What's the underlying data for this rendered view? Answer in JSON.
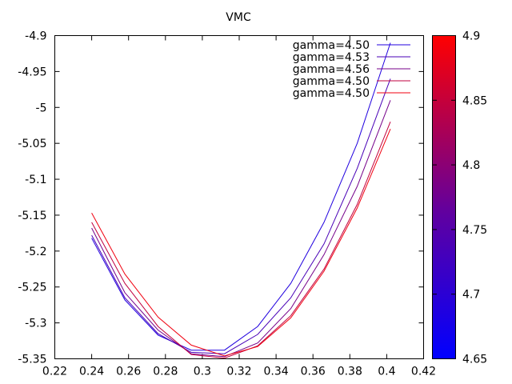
{
  "chart_data": {
    "type": "line",
    "title": "VMC",
    "xlabel": "",
    "ylabel": "",
    "xlim": [
      0.22,
      0.42
    ],
    "ylim": [
      -5.35,
      -4.9
    ],
    "xticks": [
      "0.22",
      "0.24",
      "0.26",
      "0.28",
      "0.3",
      "0.32",
      "0.34",
      "0.36",
      "0.38",
      "0.4",
      "0.42"
    ],
    "yticks": [
      "-4.9",
      "-4.95",
      "-5",
      "-5.05",
      "-5.1",
      "-5.15",
      "-5.2",
      "-5.25",
      "-5.3",
      "-5.35"
    ],
    "grid": false,
    "legend_position": "top-right",
    "colorbar": {
      "range": [
        4.65,
        4.9
      ],
      "ticks": [
        "4.9",
        "4.85",
        "4.8",
        "4.75",
        "4.7",
        "4.65"
      ],
      "color_low": "#0000ff",
      "color_high": "#ff0000"
    },
    "series": [
      {
        "name": "gamma=4.50",
        "color": "#2000df",
        "x": [
          0.24,
          0.258,
          0.276,
          0.294,
          0.312,
          0.33,
          0.348,
          0.366,
          0.384,
          0.402
        ],
        "y": [
          -5.182,
          -5.268,
          -5.317,
          -5.338,
          -5.338,
          -5.305,
          -5.245,
          -5.16,
          -5.05,
          -4.91
        ]
      },
      {
        "name": "gamma=4.53",
        "color": "#4800b7",
        "x": [
          0.24,
          0.258,
          0.276,
          0.294,
          0.312,
          0.33,
          0.348,
          0.366,
          0.384,
          0.402
        ],
        "y": [
          -5.178,
          -5.265,
          -5.315,
          -5.341,
          -5.343,
          -5.316,
          -5.265,
          -5.19,
          -5.085,
          -4.96
        ]
      },
      {
        "name": "gamma=4.56",
        "color": "#75008a",
        "x": [
          0.24,
          0.258,
          0.276,
          0.294,
          0.312,
          0.33,
          0.348,
          0.366,
          0.384,
          0.402
        ],
        "y": [
          -5.168,
          -5.258,
          -5.31,
          -5.343,
          -5.347,
          -5.328,
          -5.28,
          -5.205,
          -5.11,
          -4.99
        ]
      },
      {
        "name": "gamma=4.50",
        "color": "#c0003f",
        "x": [
          0.24,
          0.258,
          0.276,
          0.294,
          0.312,
          0.33,
          0.348,
          0.366,
          0.384,
          0.402
        ],
        "y": [
          -5.16,
          -5.245,
          -5.305,
          -5.344,
          -5.349,
          -5.332,
          -5.29,
          -5.225,
          -5.135,
          -5.02
        ]
      },
      {
        "name": "gamma=4.50",
        "color": "#f0000f",
        "x": [
          0.24,
          0.258,
          0.276,
          0.294,
          0.312,
          0.33,
          0.348,
          0.366,
          0.384,
          0.402
        ],
        "y": [
          -5.147,
          -5.232,
          -5.292,
          -5.331,
          -5.346,
          -5.333,
          -5.293,
          -5.228,
          -5.14,
          -5.03
        ]
      }
    ]
  }
}
